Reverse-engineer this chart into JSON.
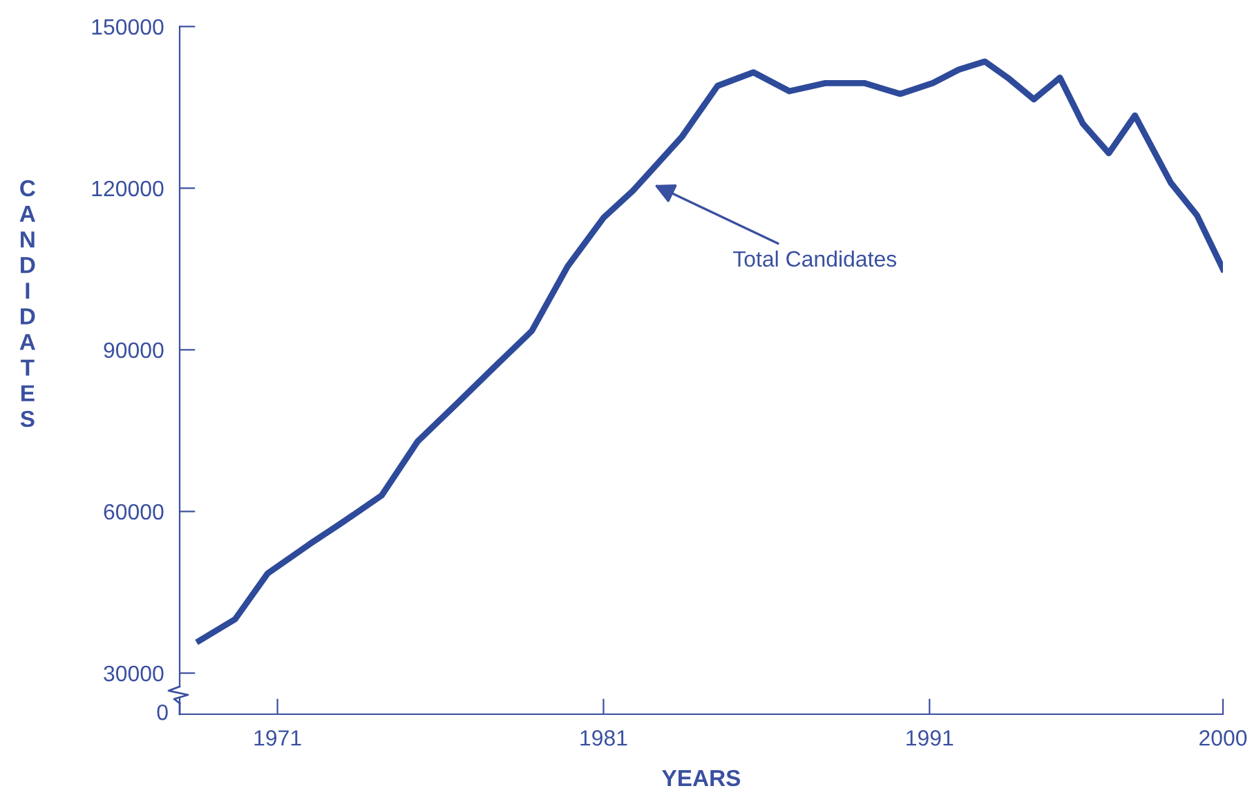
{
  "chart_data": {
    "type": "line",
    "xlabel": "YEARS",
    "ylabel": "CANDIDATES",
    "x": [
      1968.6,
      1969.7,
      1970.7,
      1972.0,
      1973.0,
      1974.2,
      1975.3,
      1976.5,
      1977.6,
      1978.8,
      1979.9,
      1981.0,
      1981.9,
      1983.4,
      1984.5,
      1985.6,
      1986.7,
      1987.8,
      1989.0,
      1990.1,
      1991.1,
      1991.9,
      1992.7,
      1993.4,
      1994.2,
      1995.0,
      1995.7,
      1996.5,
      1997.3,
      1998.4,
      1999.2,
      2000.0
    ],
    "series": [
      {
        "color": "#2e4a9a",
        "values": [
          36000,
          40000,
          48500,
          54000,
          58000,
          63000,
          73000,
          80000,
          86500,
          93500,
          105500,
          114500,
          119500,
          129500,
          139000,
          141500,
          138000,
          139500,
          139500,
          137500,
          139500,
          142000,
          143500,
          140500,
          136500,
          140500,
          132000,
          126500,
          133500,
          121000,
          115000,
          105000
        ]
      }
    ],
    "xlim": [
      1968,
      2000
    ],
    "xticks": [
      1971,
      1981,
      1991,
      2000
    ],
    "ylim": [
      27500,
      150000
    ],
    "yticks": [
      30000,
      60000,
      90000,
      120000,
      150000
    ],
    "grid": false,
    "legend": false,
    "marker": "none",
    "line_style": "solid",
    "annotations": [
      "0",
      "Total Candidates"
    ]
  }
}
